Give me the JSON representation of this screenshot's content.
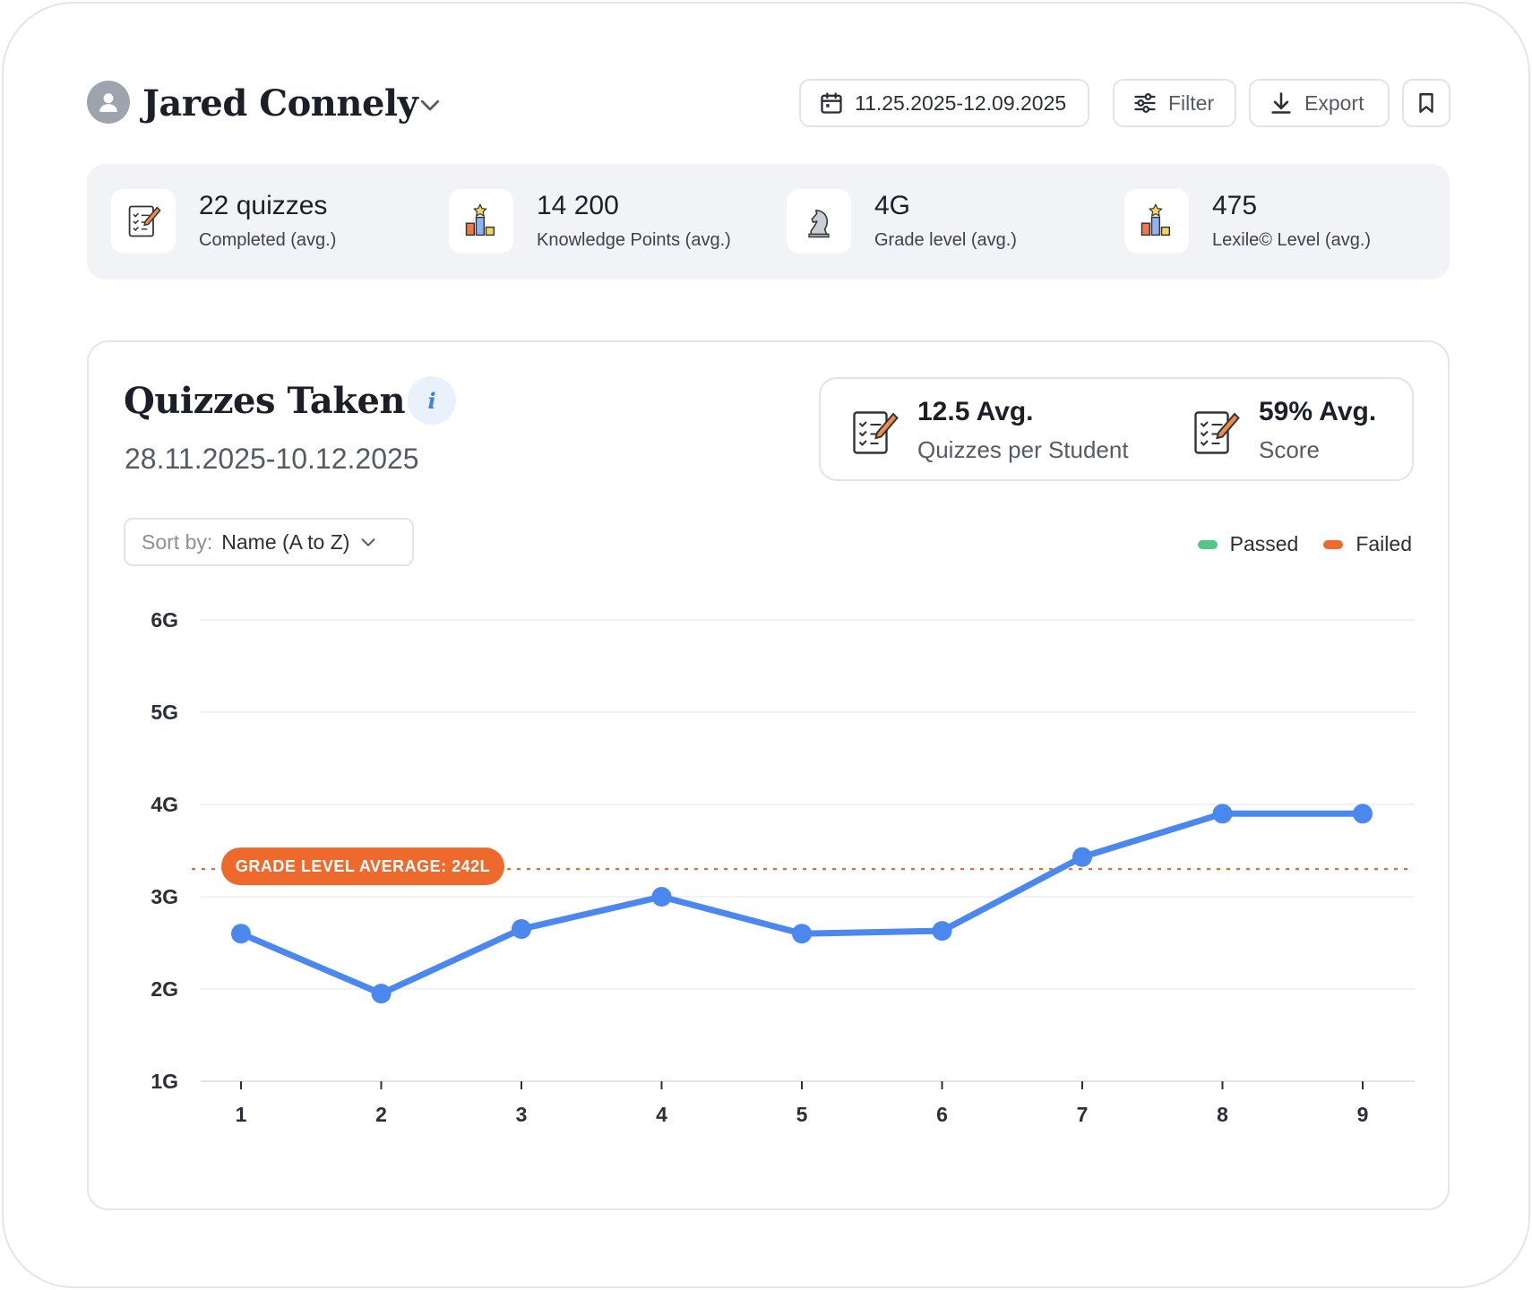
{
  "header": {
    "user_name": "Jared Connely",
    "date_range": "11.25.2025-12.09.2025",
    "filter_label": "Filter",
    "export_label": "Export"
  },
  "stats": [
    {
      "value": "22 quizzes",
      "label": "Completed (avg.)",
      "icon": "quiz-checklist-icon"
    },
    {
      "value": "14 200",
      "label": "Knowledge Points (avg.)",
      "icon": "podium-star-icon"
    },
    {
      "value": "4G",
      "label": "Grade level (avg.)",
      "icon": "chess-knight-icon"
    },
    {
      "value": "475",
      "label": "Lexile© Level (avg.)",
      "icon": "podium-star-icon"
    }
  ],
  "card": {
    "title": "Quizzes Taken",
    "date_range": "28.11.2025-10.12.2025",
    "summary": [
      {
        "value": "12.5 Avg.",
        "label": "Quizzes per Student"
      },
      {
        "value": "59% Avg.",
        "label": "Score"
      }
    ],
    "sort_label": "Sort by:",
    "sort_value": "Name (A to Z)",
    "legend": [
      {
        "label": "Passed",
        "color": "#4fc985"
      },
      {
        "label": "Failed",
        "color": "#ee6a2c"
      }
    ]
  },
  "chart_data": {
    "type": "line",
    "x": [
      1,
      2,
      3,
      4,
      5,
      6,
      7,
      8,
      9
    ],
    "y_ticks": [
      "1G",
      "2G",
      "3G",
      "4G",
      "5G",
      "6G"
    ],
    "ylim": [
      1,
      6
    ],
    "series": [
      {
        "values": [
          2.6,
          1.95,
          2.65,
          3.0,
          2.6,
          2.63,
          3.43,
          3.9,
          3.9
        ],
        "color": "#4a88f0"
      }
    ],
    "reference_line": {
      "label": "GRADE LEVEL AVERAGE: 242L",
      "value": 3.3,
      "color": "#ee6a2c"
    },
    "grid": true
  },
  "colors": {
    "accent": "#4a88f0",
    "average": "#ee6a2c"
  }
}
